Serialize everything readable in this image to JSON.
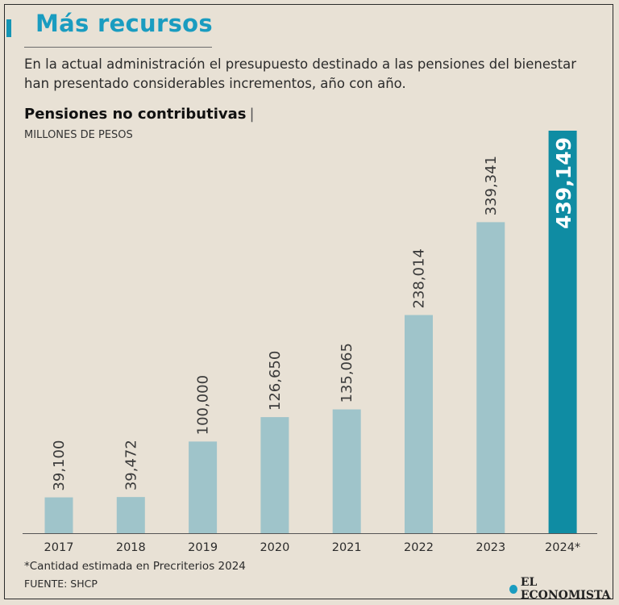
{
  "header": {
    "title": "Más recursos",
    "subtitle": "En la actual administración el presupuesto destinado a las pensiones del bienestar han presentado considerables incrementos, año con año."
  },
  "chart_data": {
    "type": "bar",
    "title": "Pensiones no contributivas",
    "title_separator": "|",
    "ylabel": "MILLONES DE PESOS",
    "xlabel": "",
    "categories": [
      "2017",
      "2018",
      "2019",
      "2020",
      "2021",
      "2022",
      "2023",
      "2024*"
    ],
    "values": [
      39100,
      39472,
      100000,
      126650,
      135065,
      238014,
      339341,
      439149
    ],
    "value_labels": [
      "39,100",
      "39,472",
      "100,000",
      "126,650",
      "135,065",
      "238,014",
      "339,341",
      "439,149"
    ],
    "highlight_index": 7,
    "ylim": [
      0,
      439149
    ],
    "grid": false,
    "colors": {
      "bar": "#9fc4ca",
      "highlight": "#0f8ca3",
      "label": "#3a3a3a",
      "highlight_label": "#ffffff",
      "axis": "#555555"
    }
  },
  "footer": {
    "footnote": "*Cantidad estimada en Precriterios 2024",
    "source": "FUENTE: SHCP",
    "brand": "EL ECONOMISTA"
  }
}
